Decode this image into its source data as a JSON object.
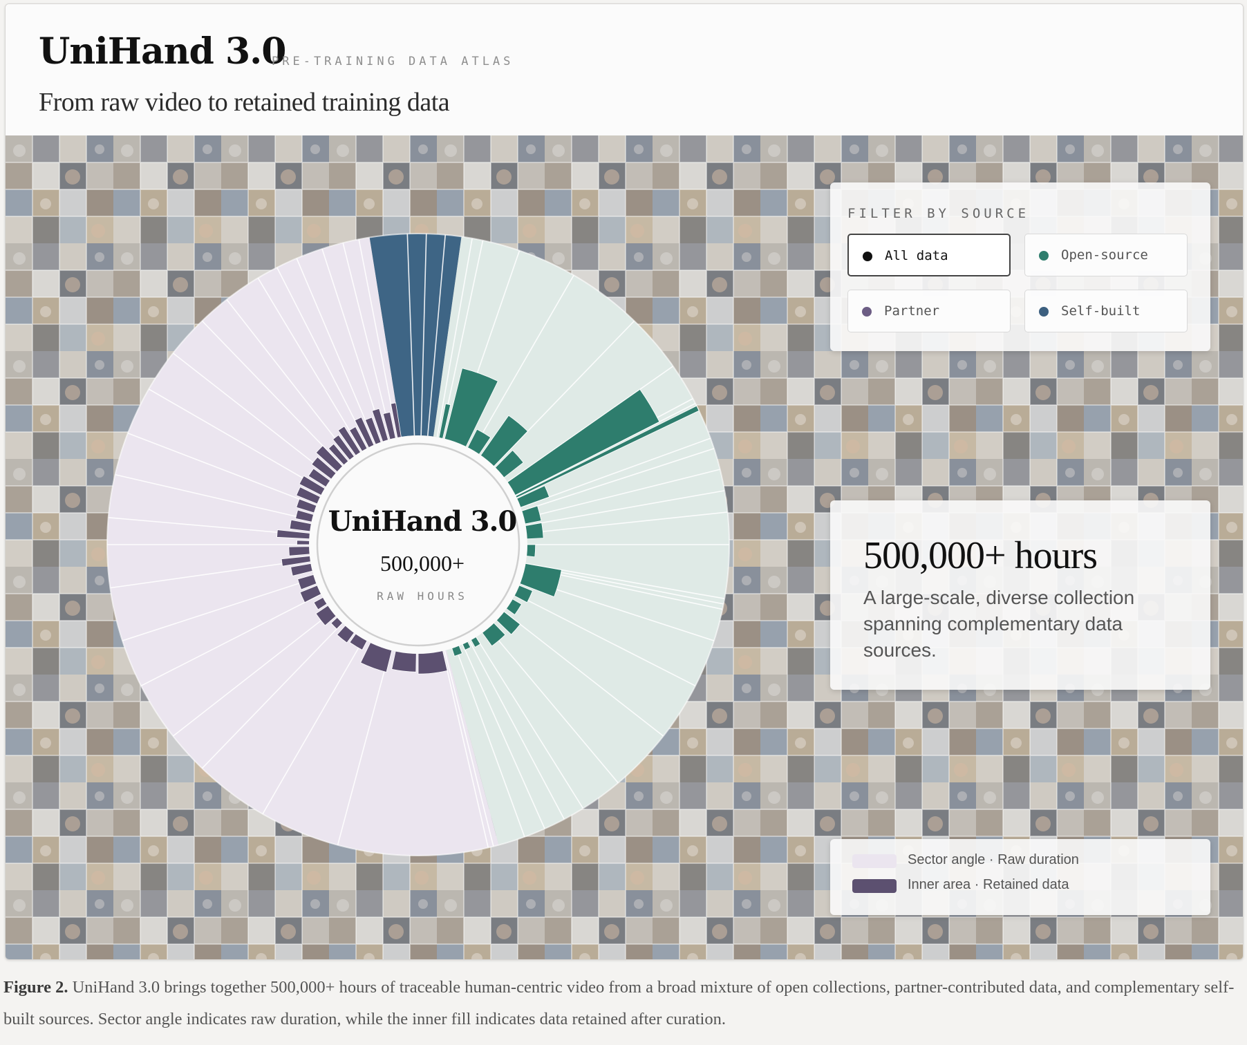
{
  "header": {
    "title": "UniHand 3.0",
    "kicker": "PRE-TRAINING DATA ATLAS",
    "subtitle": "From raw video to retained training data"
  },
  "center": {
    "title": "UniHand 3.0",
    "value": "500,000+",
    "label": "RAW HOURS"
  },
  "filter": {
    "heading": "FILTER BY SOURCE",
    "buttons": [
      {
        "label": "All data",
        "color": "#111111",
        "active": true
      },
      {
        "label": "Open-source",
        "color": "#2e7d6d",
        "active": false
      },
      {
        "label": "Partner",
        "color": "#6c5d84",
        "active": false
      },
      {
        "label": "Self-built",
        "color": "#3c5f7f",
        "active": false
      }
    ]
  },
  "info": {
    "headline": "500,000+ hours",
    "body": "A large-scale, diverse collection spanning complementary data sources."
  },
  "legend": {
    "items": [
      {
        "label": "Sector angle · Raw duration",
        "color": "#ebe5ef"
      },
      {
        "label": "Inner area · Retained data",
        "color": "#5c5070"
      }
    ]
  },
  "caption": {
    "lead": "Figure 2.",
    "text": "UniHand 3.0 brings together 500,000+ hours of traceable human-centric video from a broad mixture of open collections, partner-contributed data, and complementary self-built sources. Sector angle indicates raw duration, while the inner fill indicates data retained after curation."
  },
  "colors": {
    "self_built_sector": "#3e6585",
    "open_source_sector": "#dfeae6",
    "open_source_retained": "#2e7d6d",
    "partner_sector": "#ebe5ef",
    "partner_retained": "#5c5070"
  },
  "chart_data": {
    "type": "radial-bar",
    "note_units": "angles in degrees clockwise from 12 o'clock; retained as fraction of bar length",
    "groups": [
      {
        "name": "Self-built",
        "sector_color": "#3e6585",
        "start": -9,
        "end": 8,
        "cuts": [
          -2,
          1.5,
          5
        ],
        "bars": []
      },
      {
        "name": "Open-source",
        "sector_color": "#dfeae6",
        "retained_color": "#2e7d6d",
        "start": 8,
        "end": 165,
        "cuts": [
          10,
          12,
          19,
          30,
          44,
          55,
          62,
          63,
          70,
          72,
          76,
          80,
          84,
          90,
          100,
          101,
          102,
          108,
          117,
          128,
          140,
          148,
          152,
          156,
          160
        ],
        "bars": [
          [
            11,
            13,
            0.17
          ],
          [
            14,
            26,
            0.36
          ],
          [
            27,
            34,
            0.1
          ],
          [
            35,
            44,
            0.24
          ],
          [
            45,
            52,
            0.12
          ],
          [
            55,
            63,
            0.8
          ],
          [
            63.5,
            64.5,
            1.0
          ],
          [
            65,
            70,
            0.15
          ],
          [
            72,
            79,
            0.08
          ],
          [
            80,
            87,
            0.08
          ],
          [
            90,
            96,
            0.04
          ],
          [
            100,
            111,
            0.18
          ],
          [
            112,
            118,
            0.07
          ],
          [
            120,
            126,
            0.05
          ],
          [
            128,
            134,
            0.1
          ],
          [
            136,
            144,
            0.08
          ],
          [
            148,
            151,
            0.04
          ],
          [
            153,
            156,
            0.03
          ],
          [
            158,
            162,
            0.04
          ]
        ]
      },
      {
        "name": "Partner",
        "sector_color": "#ebe5ef",
        "retained_color": "#5c5070",
        "start": 165,
        "end": 351,
        "cuts": [
          166,
          167,
          195,
          210,
          224,
          232,
          243,
          252,
          262,
          270,
          275,
          283,
          291,
          300,
          308,
          316,
          322,
          329,
          333,
          337,
          342,
          346,
          349
        ],
        "bars": [
          [
            167,
            180,
            0.1
          ],
          [
            181,
            192,
            0.09
          ],
          [
            194,
            206,
            0.11
          ],
          [
            208,
            215,
            0.05
          ],
          [
            216,
            222,
            0.06
          ],
          [
            224,
            228,
            0.04
          ],
          [
            229,
            236,
            0.07
          ],
          [
            237,
            241,
            0.05
          ],
          [
            243,
            248,
            0.09
          ],
          [
            249,
            254,
            0.08
          ],
          [
            256,
            260,
            0.1
          ],
          [
            261,
            264,
            0.14
          ],
          [
            265,
            269,
            0.1
          ],
          [
            270,
            272,
            0.06
          ],
          [
            273,
            276,
            0.16
          ],
          [
            277,
            281,
            0.1
          ],
          [
            282,
            286,
            0.08
          ],
          [
            287,
            291,
            0.09
          ],
          [
            292,
            296,
            0.11
          ],
          [
            297,
            301,
            0.12
          ],
          [
            302,
            306,
            0.1
          ],
          [
            307,
            311,
            0.12
          ],
          [
            312,
            316,
            0.14
          ],
          [
            317,
            320,
            0.11
          ],
          [
            321,
            324,
            0.13
          ],
          [
            325,
            328,
            0.15
          ],
          [
            329,
            332,
            0.12
          ],
          [
            333,
            336,
            0.15
          ],
          [
            337,
            340,
            0.13
          ],
          [
            341,
            344,
            0.16
          ],
          [
            345,
            348,
            0.13
          ],
          [
            349,
            351,
            0.17
          ]
        ]
      }
    ]
  }
}
